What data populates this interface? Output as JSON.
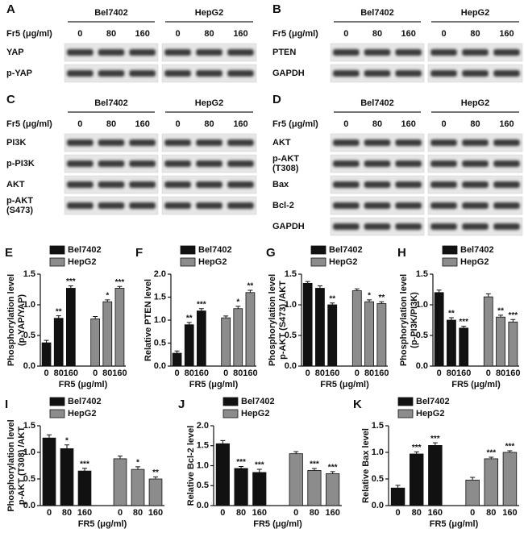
{
  "blots": [
    {
      "panel": "A",
      "groups": [
        "Bel7402",
        "HepG2"
      ],
      "dose_label": "Fr5 (μg/ml)",
      "doses": [
        "0",
        "80",
        "160",
        "0",
        "80",
        "160"
      ],
      "rows": [
        [
          "YAP"
        ],
        [
          "p-YAP"
        ]
      ]
    },
    {
      "panel": "B",
      "groups": [
        "Bel7402",
        "HepG2"
      ],
      "dose_label": "Fr5 (μg/ml)",
      "doses": [
        "0",
        "80",
        "160",
        "0",
        "80",
        "160"
      ],
      "rows": [
        [
          "PTEN"
        ],
        [
          "GAPDH"
        ]
      ]
    },
    {
      "panel": "C",
      "groups": [
        "Bel7402",
        "HepG2"
      ],
      "dose_label": "Fr5 (μg/ml)",
      "doses": [
        "0",
        "80",
        "160",
        "0",
        "80",
        "160"
      ],
      "rows": [
        [
          "PI3K"
        ],
        [
          "p-PI3K"
        ],
        [
          "AKT"
        ],
        [
          "p-AKT",
          "(S473)"
        ]
      ]
    },
    {
      "panel": "D",
      "groups": [
        "Bel7402",
        "HepG2"
      ],
      "dose_label": "Fr5 (μg/ml)",
      "doses": [
        "0",
        "80",
        "160",
        "0",
        "80",
        "160"
      ],
      "rows": [
        [
          "AKT"
        ],
        [
          "p-AKT",
          "(T308)"
        ],
        [
          "Bax"
        ],
        [
          "Bcl-2"
        ],
        [
          "GAPDH"
        ]
      ]
    }
  ],
  "chart_data": [
    {
      "type": "bar",
      "panel": "E",
      "ylabel": [
        "Phosphorylation level",
        "(p-YAP/YAP)"
      ],
      "xlabel": "FR5 (μg/ml)",
      "categories": [
        "0",
        "80",
        "160",
        "0",
        "80",
        "160"
      ],
      "series": [
        {
          "name": "Bel7402",
          "color": "#111111",
          "values": [
            0.38,
            0.78,
            1.27,
            null,
            null,
            null
          ],
          "errors": [
            0.04,
            0.04,
            0.04,
            null,
            null,
            null
          ]
        },
        {
          "name": "HepG2",
          "color": "#8c8c8c",
          "values": [
            null,
            null,
            null,
            0.77,
            1.05,
            1.27
          ],
          "errors": [
            null,
            null,
            null,
            0.04,
            0.03,
            0.03
          ]
        }
      ],
      "annotations": [
        null,
        "**",
        "***",
        null,
        "*",
        "***"
      ],
      "ylim": [
        0,
        1.5
      ],
      "yticks": [
        {
          "value": 0,
          "label": "0.0"
        },
        {
          "value": 0.5,
          "label": "0.5"
        },
        {
          "value": 1,
          "label": "1.0"
        },
        {
          "value": 1.5,
          "label": "1.5"
        }
      ]
    },
    {
      "type": "bar",
      "panel": "F",
      "ylabel": [
        "Relative PTEN level"
      ],
      "xlabel": "FR5 (μg/ml)",
      "categories": [
        "0",
        "80",
        "160",
        "0",
        "80",
        "160"
      ],
      "series": [
        {
          "name": "Bel7402",
          "color": "#111111",
          "values": [
            0.28,
            0.9,
            1.2,
            null,
            null,
            null
          ],
          "errors": [
            0.05,
            0.05,
            0.05,
            null,
            null,
            null
          ]
        },
        {
          "name": "HepG2",
          "color": "#8c8c8c",
          "values": [
            null,
            null,
            null,
            1.05,
            1.25,
            1.6
          ],
          "errors": [
            null,
            null,
            null,
            0.04,
            0.05,
            0.05
          ]
        }
      ],
      "annotations": [
        null,
        "**",
        "***",
        null,
        "*",
        "**"
      ],
      "ylim": [
        0,
        2
      ],
      "yticks": [
        {
          "value": 0,
          "label": "0.0"
        },
        {
          "value": 0.5,
          "label": "0.5"
        },
        {
          "value": 1,
          "label": "1.0"
        },
        {
          "value": 1.5,
          "label": "1.5"
        },
        {
          "value": 2,
          "label": "2.0"
        }
      ]
    },
    {
      "type": "bar",
      "panel": "G",
      "ylabel": [
        "Phosphorylation level",
        "p-AKT (S473) /AKT"
      ],
      "xlabel": "FR5 (μg/ml)",
      "categories": [
        "0",
        "80",
        "160",
        "0",
        "80",
        "160"
      ],
      "series": [
        {
          "name": "Bel7402",
          "color": "#111111",
          "values": [
            1.35,
            1.27,
            1.0,
            null,
            null,
            null
          ],
          "errors": [
            0.03,
            0.04,
            0.03,
            null,
            null,
            null
          ]
        },
        {
          "name": "HepG2",
          "color": "#8c8c8c",
          "values": [
            null,
            null,
            null,
            1.23,
            1.05,
            1.02
          ],
          "errors": [
            null,
            null,
            null,
            0.03,
            0.03,
            0.03
          ]
        }
      ],
      "annotations": [
        null,
        null,
        "**",
        null,
        "*",
        "**"
      ],
      "ylim": [
        0,
        1.5
      ],
      "yticks": [
        {
          "value": 0,
          "label": "0.0"
        },
        {
          "value": 0.5,
          "label": "0.5"
        },
        {
          "value": 1,
          "label": "1.0"
        },
        {
          "value": 1.5,
          "label": "1.5"
        }
      ]
    },
    {
      "type": "bar",
      "panel": "H",
      "ylabel": [
        "Phosphorylation level",
        "(p-PI3K/PI3K)"
      ],
      "xlabel": "FR5 (μg/ml)",
      "categories": [
        "0",
        "80",
        "160",
        "0",
        "80",
        "160"
      ],
      "series": [
        {
          "name": "Bel7402",
          "color": "#111111",
          "values": [
            1.2,
            0.75,
            0.62,
            null,
            null,
            null
          ],
          "errors": [
            0.04,
            0.04,
            0.03,
            null,
            null,
            null
          ]
        },
        {
          "name": "HepG2",
          "color": "#8c8c8c",
          "values": [
            null,
            null,
            null,
            1.13,
            0.8,
            0.72
          ],
          "errors": [
            null,
            null,
            null,
            0.05,
            0.03,
            0.04
          ]
        }
      ],
      "annotations": [
        null,
        "**",
        "***",
        null,
        "**",
        "***"
      ],
      "ylim": [
        0,
        1.5
      ],
      "yticks": [
        {
          "value": 0,
          "label": "0.0"
        },
        {
          "value": 0.5,
          "label": "0.5"
        },
        {
          "value": 1,
          "label": "1.0"
        },
        {
          "value": 1.5,
          "label": "1.5"
        }
      ]
    },
    {
      "type": "bar",
      "panel": "I",
      "ylabel": [
        "Phosphorylation level",
        "p-AKT (T308) /AKT"
      ],
      "xlabel": "FR5 (μg/ml)",
      "categories": [
        "0",
        "80",
        "160",
        "0",
        "80",
        "160"
      ],
      "series": [
        {
          "name": "Bel7402",
          "color": "#111111",
          "values": [
            1.27,
            1.07,
            0.65,
            null,
            null,
            null
          ],
          "errors": [
            0.06,
            0.07,
            0.05,
            null,
            null,
            null
          ]
        },
        {
          "name": "HepG2",
          "color": "#8c8c8c",
          "values": [
            null,
            null,
            null,
            0.88,
            0.68,
            0.5
          ],
          "errors": [
            null,
            null,
            null,
            0.05,
            0.05,
            0.04
          ]
        }
      ],
      "annotations": [
        null,
        "*",
        "***",
        null,
        "*",
        "**"
      ],
      "ylim": [
        0,
        1.5
      ],
      "yticks": [
        {
          "value": 0,
          "label": "0.0"
        },
        {
          "value": 0.5,
          "label": "0.5"
        },
        {
          "value": 1,
          "label": "1.0"
        },
        {
          "value": 1.5,
          "label": "1.5"
        }
      ]
    },
    {
      "type": "bar",
      "panel": "J",
      "ylabel": [
        "Relative Bcl-2 level"
      ],
      "xlabel": "FR5 (μg/ml)",
      "categories": [
        "0",
        "80",
        "160",
        "0",
        "80",
        "160"
      ],
      "series": [
        {
          "name": "Bel7402",
          "color": "#111111",
          "values": [
            1.55,
            0.93,
            0.83,
            null,
            null,
            null
          ],
          "errors": [
            0.08,
            0.05,
            0.08,
            null,
            null,
            null
          ]
        },
        {
          "name": "HepG2",
          "color": "#8c8c8c",
          "values": [
            null,
            null,
            null,
            1.3,
            0.88,
            0.8
          ],
          "errors": [
            null,
            null,
            null,
            0.05,
            0.05,
            0.05
          ]
        }
      ],
      "annotations": [
        null,
        "***",
        "***",
        null,
        "***",
        "***"
      ],
      "ylim": [
        0,
        2
      ],
      "yticks": [
        {
          "value": 0,
          "label": "0.0"
        },
        {
          "value": 0.5,
          "label": "0.5"
        },
        {
          "value": 1,
          "label": "1.0"
        },
        {
          "value": 1.5,
          "label": "1.5"
        },
        {
          "value": 2,
          "label": "2.0"
        }
      ]
    },
    {
      "type": "bar",
      "panel": "K",
      "ylabel": [
        "Relative Bax level"
      ],
      "xlabel": "FR5 (μg/ml)",
      "categories": [
        "0",
        "80",
        "160",
        "0",
        "80",
        "160"
      ],
      "series": [
        {
          "name": "Bel7402",
          "color": "#111111",
          "values": [
            0.33,
            0.97,
            1.13,
            null,
            null,
            null
          ],
          "errors": [
            0.05,
            0.04,
            0.05,
            null,
            null,
            null
          ]
        },
        {
          "name": "HepG2",
          "color": "#8c8c8c",
          "values": [
            null,
            null,
            null,
            0.48,
            0.88,
            1.0
          ],
          "errors": [
            null,
            null,
            null,
            0.05,
            0.03,
            0.03
          ]
        }
      ],
      "annotations": [
        null,
        "***",
        "***",
        null,
        "***",
        "***"
      ],
      "ylim": [
        0,
        1.5
      ],
      "yticks": [
        {
          "value": 0,
          "label": "0.0"
        },
        {
          "value": 0.5,
          "label": "0.5"
        },
        {
          "value": 1,
          "label": "1.0"
        },
        {
          "value": 1.5,
          "label": "1.5"
        }
      ]
    }
  ]
}
